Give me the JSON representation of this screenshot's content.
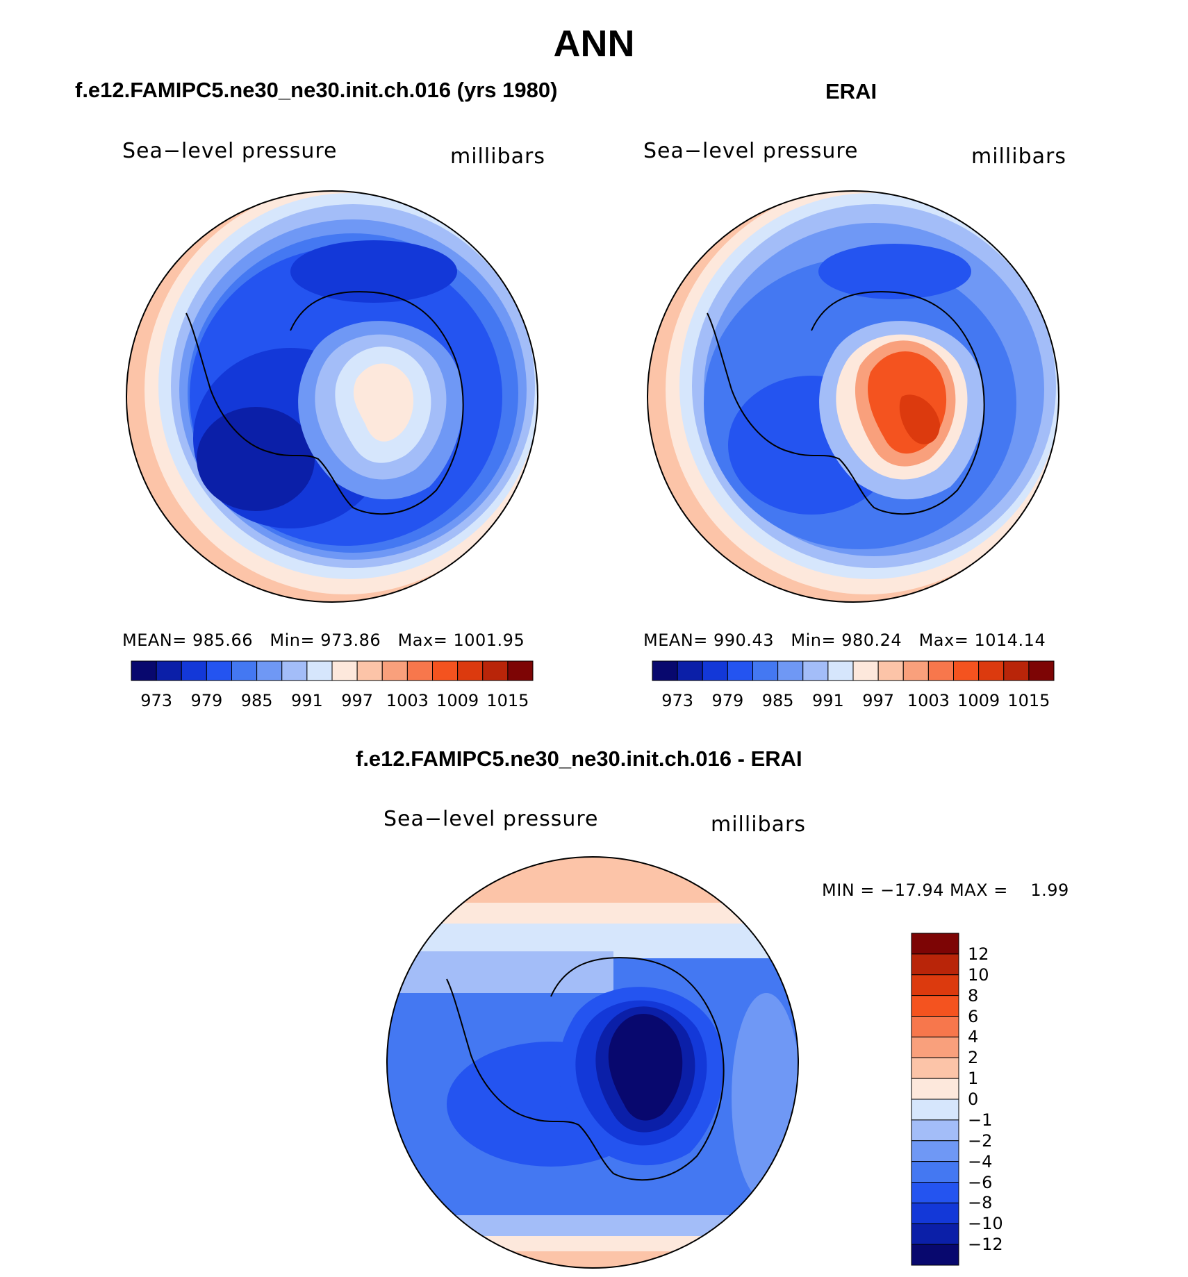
{
  "figure": {
    "title": "ANN",
    "unit": "millibars",
    "variable": "Sea−level pressure"
  },
  "colors": {
    "scale": [
      "#08086e",
      "#0b1fa8",
      "#1338d8",
      "#2454f0",
      "#4478f2",
      "#6f98f5",
      "#a3bdf8",
      "#d6e6fc",
      "#fde8dc",
      "#fcc4a8",
      "#f9a07c",
      "#f7774c",
      "#f4531f",
      "#dc3a0e",
      "#b92509",
      "#7d0505"
    ],
    "diff_scale": [
      "#08086e",
      "#0b1fa8",
      "#1338d8",
      "#2454f0",
      "#4478f2",
      "#6f98f5",
      "#a3bdf8",
      "#d6e6fc",
      "#fde8dc",
      "#fcc4a8",
      "#f9a07c",
      "#f7774c",
      "#f4531f",
      "#dc3a0e",
      "#b92509",
      "#7d0505"
    ]
  },
  "panels": [
    {
      "id": "model",
      "header": "f.e12.FAMIPC5.ne30_ne30.init.ch.016 (yrs 1980)",
      "label_left": "Sea−level pressure",
      "label_right": "millibars",
      "stats": {
        "mean_label": "MEAN=",
        "mean": "985.66",
        "min_label": "Min=",
        "min": "973.86",
        "max_label": "Max=",
        "max": "1001.95"
      },
      "colorbar_ticks": [
        "973",
        "979",
        "985",
        "991",
        "997",
        "1003",
        "1009",
        "1015"
      ]
    },
    {
      "id": "obs",
      "header": "ERAI",
      "label_left": "Sea−level pressure",
      "label_right": "millibars",
      "stats": {
        "mean_label": "MEAN=",
        "mean": "990.43",
        "min_label": "Min=",
        "min": "980.24",
        "max_label": "Max=",
        "max": "1014.14"
      },
      "colorbar_ticks": [
        "973",
        "979",
        "985",
        "991",
        "997",
        "1003",
        "1009",
        "1015"
      ]
    }
  ],
  "diff": {
    "header": "f.e12.FAMIPC5.ne30_ne30.init.ch.016 - ERAI",
    "label_left": "Sea−level pressure",
    "label_right": "millibars",
    "stats_text": "MIN = −17.94 MAX =    1.99",
    "colorbar_ticks": [
      "12",
      "10",
      "8",
      "6",
      "4",
      "2",
      "1",
      "0",
      "−1",
      "−2",
      "−4",
      "−6",
      "−8",
      "−10",
      "−12"
    ]
  }
}
